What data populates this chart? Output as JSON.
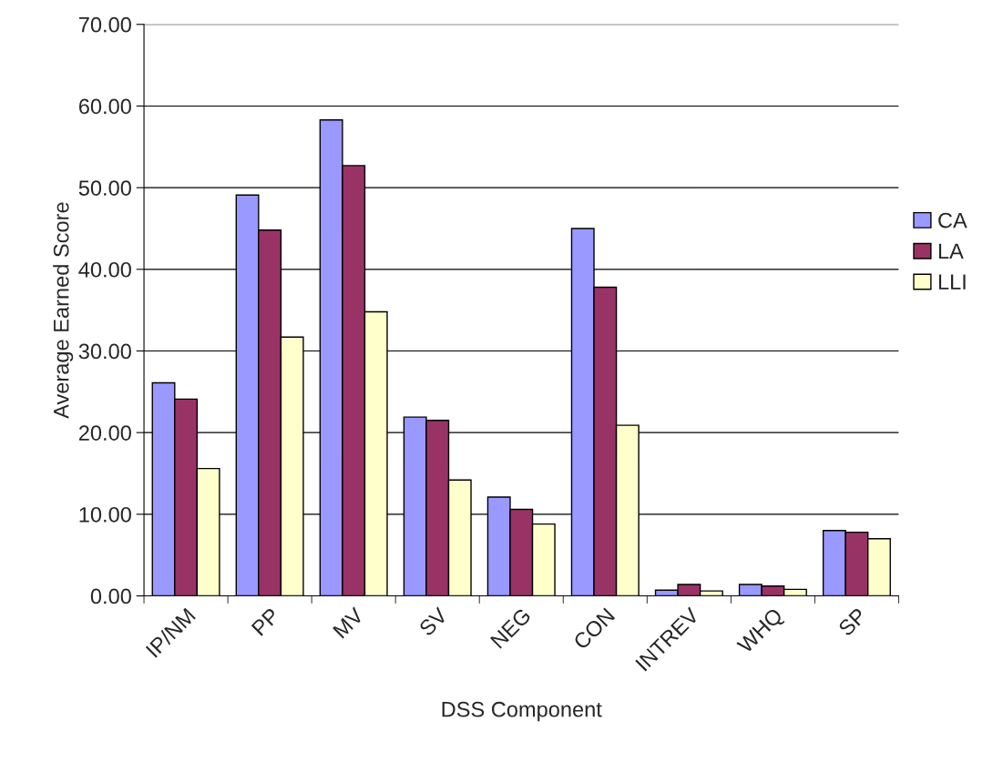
{
  "chart_data": {
    "type": "bar",
    "xlabel": "DSS Component",
    "ylabel": "Average Earned Score",
    "categories": [
      "IP/NM",
      "PP",
      "MV",
      "SV",
      "NEG",
      "CON",
      "INTREV",
      "WHQ",
      "SP"
    ],
    "series": [
      {
        "name": "CA",
        "color": "#9999ff",
        "values": [
          26.1,
          49.1,
          58.3,
          21.9,
          12.1,
          45.0,
          0.7,
          1.4,
          8.0
        ]
      },
      {
        "name": "LA",
        "color": "#993366",
        "values": [
          24.1,
          44.8,
          52.7,
          21.5,
          10.6,
          37.8,
          1.4,
          1.2,
          7.8
        ]
      },
      {
        "name": "LLI",
        "color": "#ffffcc",
        "values": [
          15.6,
          31.7,
          34.8,
          14.2,
          8.8,
          20.9,
          0.6,
          0.8,
          7.0
        ]
      }
    ],
    "ylim": [
      0,
      70
    ],
    "yticks": [
      {
        "value": 0,
        "label": "0.00"
      },
      {
        "value": 10,
        "label": "10.00"
      },
      {
        "value": 20,
        "label": "20.00"
      },
      {
        "value": 30,
        "label": "30.00"
      },
      {
        "value": 40,
        "label": "40.00"
      },
      {
        "value": 50,
        "label": "50.00"
      },
      {
        "value": 60,
        "label": "60.00"
      },
      {
        "value": 70,
        "label": "70.00"
      }
    ],
    "grid": "y",
    "legend": "right"
  }
}
